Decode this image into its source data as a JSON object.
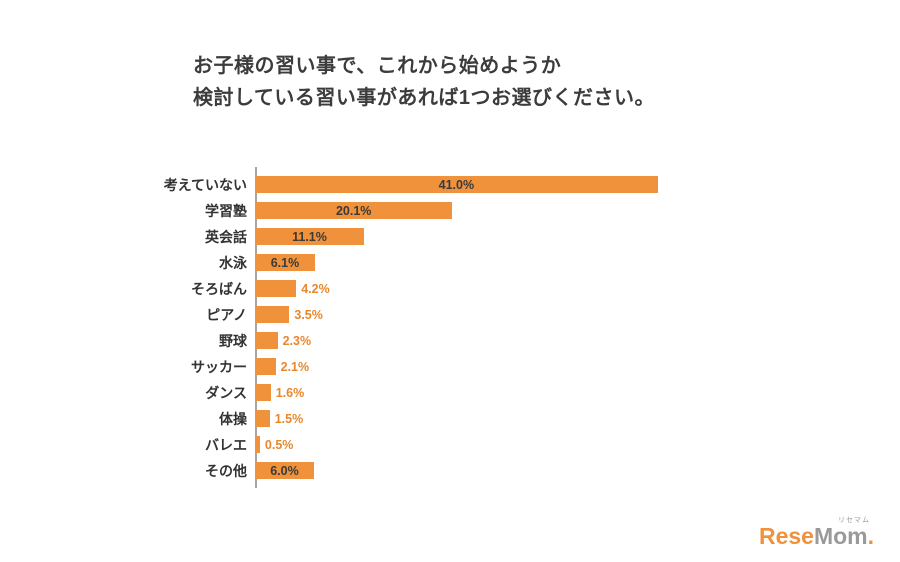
{
  "title": {
    "line1": "お子様の習い事で、これから始めようか",
    "line2": "検討している習い事があれば1つお選びください。"
  },
  "chart_data": {
    "type": "bar",
    "orientation": "horizontal",
    "title": "お子様の習い事で、これから始めようか検討している習い事があれば1つお選びください。",
    "categories": [
      "考えていない",
      "学習塾",
      "英会話",
      "水泳",
      "そろばん",
      "ピアノ",
      "野球",
      "サッカー",
      "ダンス",
      "体操",
      "バレエ",
      "その他"
    ],
    "values": [
      41.0,
      20.1,
      11.1,
      6.1,
      4.2,
      3.5,
      2.3,
      2.1,
      1.6,
      1.5,
      0.5,
      6.0
    ],
    "value_labels": [
      "41.0%",
      "20.1%",
      "11.1%",
      "6.1%",
      "4.2%",
      "3.5%",
      "2.3%",
      "2.1%",
      "1.6%",
      "1.5%",
      "0.5%",
      "6.0%"
    ],
    "xlabel": "",
    "ylabel": "",
    "xlim": [
      0,
      45
    ],
    "grid": false,
    "legend": "none",
    "bar_color": "#F0913C",
    "inside_label_min": 6.0,
    "label_inside_color": "#3a3a3a",
    "label_outside_color": "#E8872C",
    "axis_color": "#A6A6A6"
  },
  "logo": {
    "part1": "Rese",
    "part2": "Mom",
    "dot": ".",
    "ruby": "リセマム"
  }
}
